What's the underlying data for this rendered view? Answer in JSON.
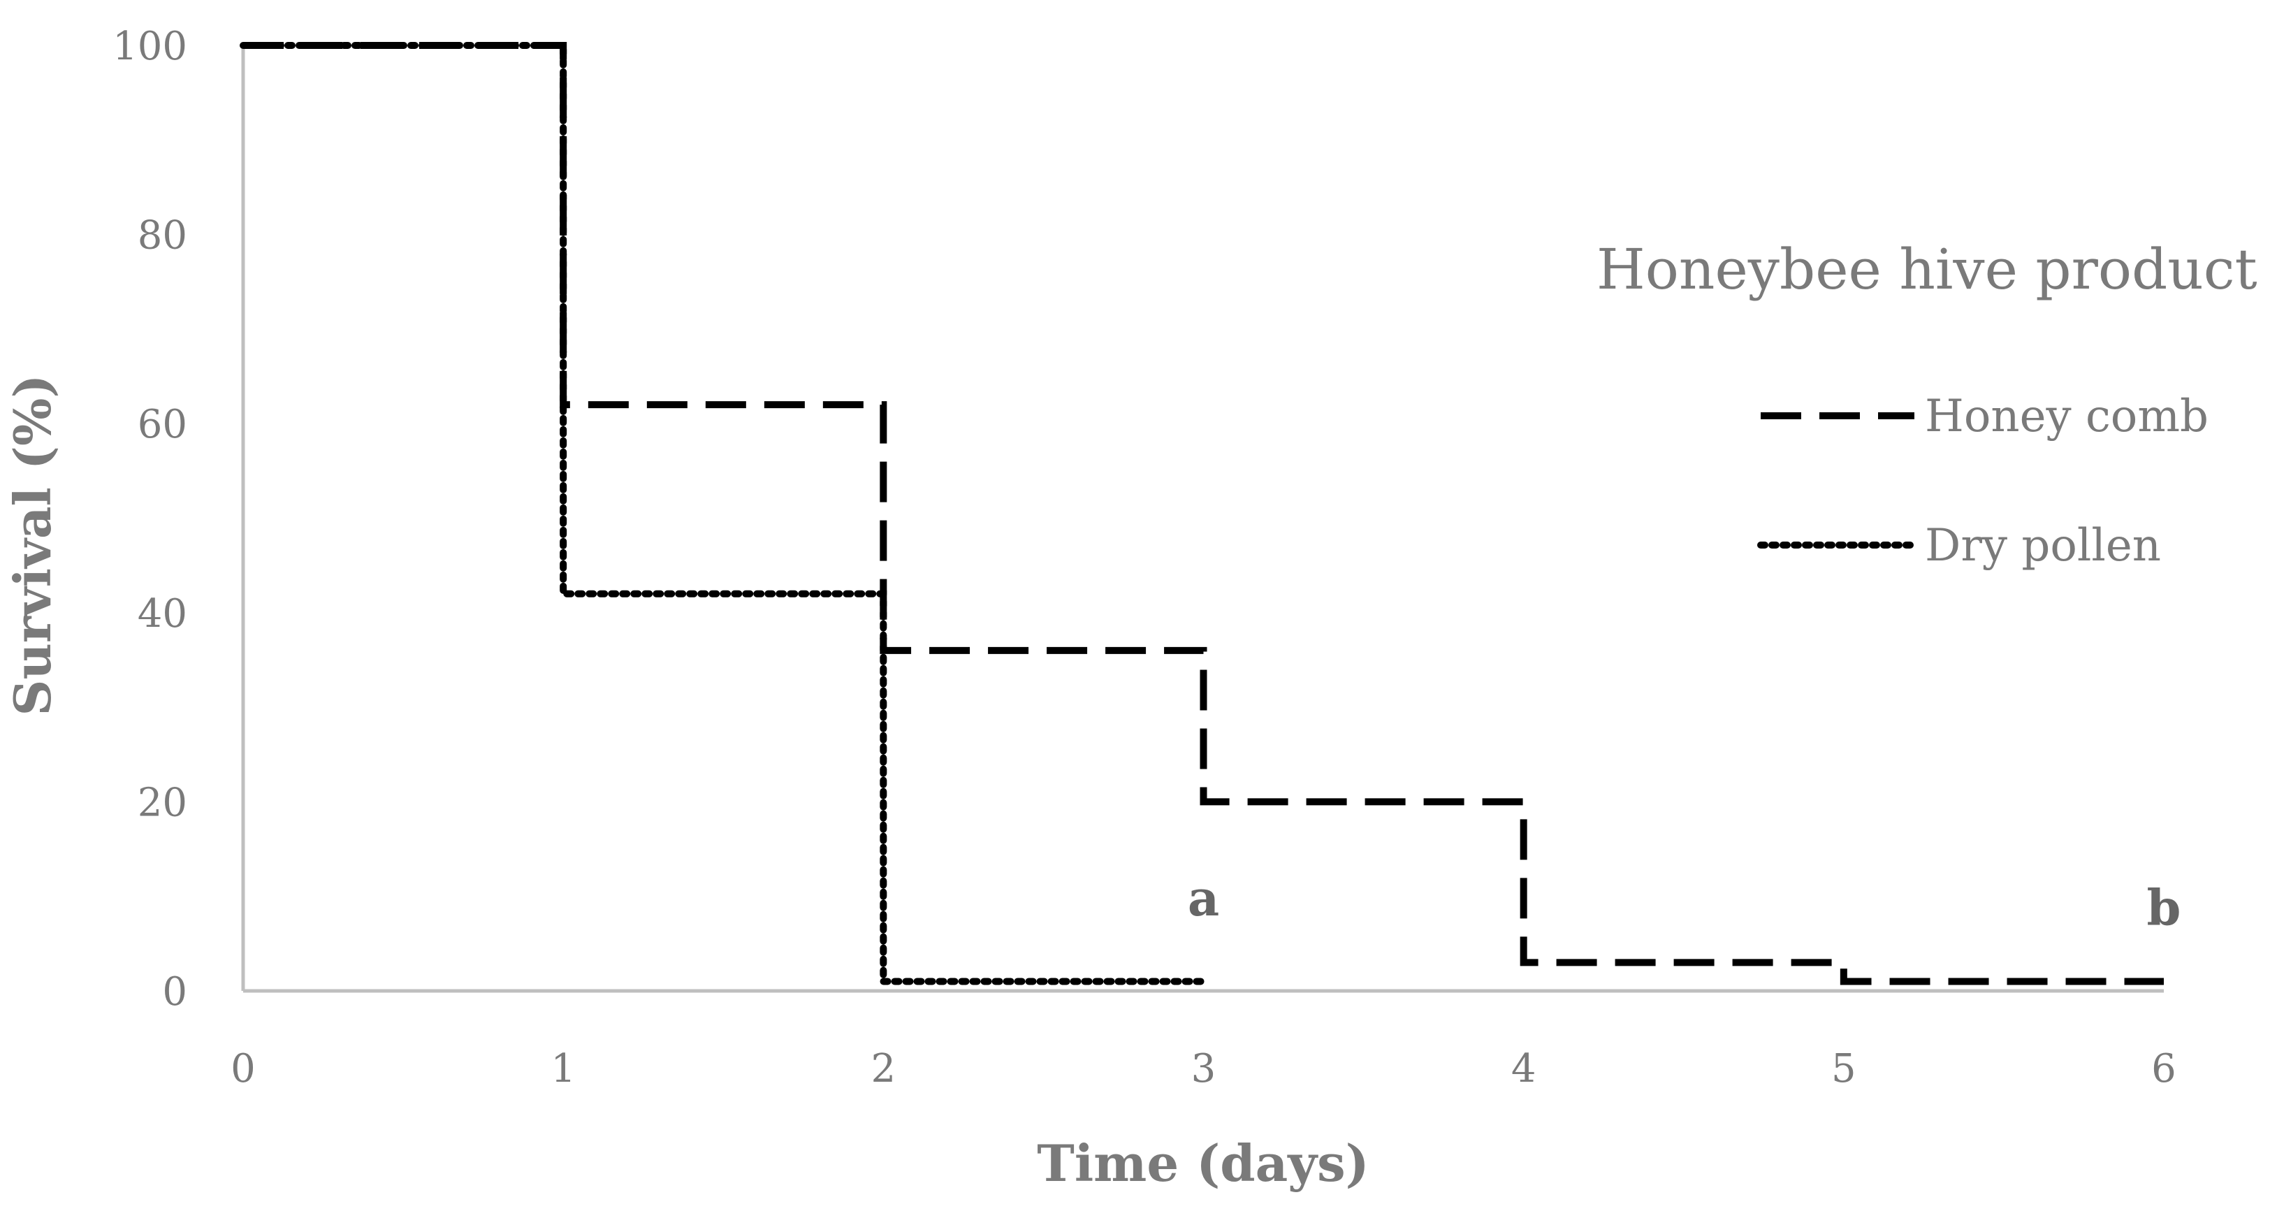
{
  "chart_data": {
    "type": "line",
    "step": true,
    "title": "",
    "xlabel": "Time (days)",
    "ylabel": "Survival (%)",
    "xlim": [
      0,
      6
    ],
    "ylim": [
      0,
      100
    ],
    "xticks": [
      "0",
      "1",
      "2",
      "3",
      "4",
      "5",
      "6"
    ],
    "yticks": [
      "0",
      "20",
      "40",
      "60",
      "80",
      "100"
    ],
    "grid": false,
    "legend": {
      "title": "Honeybee hive product",
      "position": "right"
    },
    "series": [
      {
        "name": "Honey comb",
        "style": "dashed",
        "x": [
          0,
          1,
          2,
          3,
          4,
          5,
          6
        ],
        "y": [
          100,
          62,
          36,
          20,
          3,
          1,
          1
        ]
      },
      {
        "name": "Dry pollen",
        "style": "dotted",
        "x": [
          0,
          1,
          2,
          3
        ],
        "y": [
          100,
          42,
          1,
          1
        ]
      }
    ],
    "annotations": [
      {
        "text": "a",
        "x": 3,
        "y": 8
      },
      {
        "text": "b",
        "x": 6,
        "y": 7
      }
    ],
    "colors": {
      "line": "#000000",
      "axis": "#bfbfbf",
      "text": "#7a7a7a"
    }
  }
}
